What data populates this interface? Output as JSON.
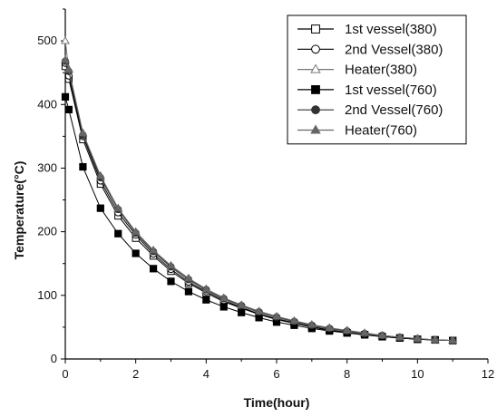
{
  "chart_data": {
    "type": "line",
    "xlabel": "Time(hour)",
    "ylabel": "Temperature(°C)",
    "xlim": [
      0,
      12
    ],
    "ylim": [
      0,
      550
    ],
    "xticks": [
      0,
      2,
      4,
      6,
      8,
      10,
      12
    ],
    "yticks": [
      0,
      100,
      200,
      300,
      400,
      500
    ],
    "grid": false,
    "legend_position": "top-right",
    "x": [
      0,
      0.1,
      0.5,
      1,
      1.5,
      2,
      2.5,
      3,
      3.5,
      4,
      4.5,
      5,
      5.5,
      6,
      6.5,
      7,
      7.5,
      8,
      8.5,
      9,
      9.5,
      10,
      10.5,
      11
    ],
    "series": [
      {
        "name": "1st  vessel(380)",
        "marker": "square-open",
        "color": "#000000",
        "values": [
          460,
          440,
          345,
          275,
          225,
          190,
          162,
          138,
          119,
          104,
          90,
          80,
          70,
          62,
          56,
          50,
          45,
          41,
          38,
          35,
          33,
          31,
          30,
          29
        ]
      },
      {
        "name": "2nd Vessel(380)",
        "marker": "circle-open",
        "color": "#000000",
        "values": [
          465,
          445,
          350,
          280,
          230,
          195,
          165,
          141,
          121,
          106,
          92,
          81,
          71,
          63,
          57,
          51,
          46,
          42,
          39,
          36,
          33,
          31,
          30,
          29
        ]
      },
      {
        "name": "Heater(380)",
        "marker": "triangle-open",
        "color": "#777777",
        "values": [
          500,
          455,
          355,
          285,
          235,
          198,
          168,
          144,
          124,
          108,
          94,
          83,
          73,
          65,
          58,
          52,
          47,
          43,
          39,
          36,
          34,
          32,
          30,
          29
        ]
      },
      {
        "name": "1st vessel(760)",
        "marker": "square-filled",
        "color": "#000000",
        "values": [
          412,
          392,
          302,
          237,
          197,
          166,
          142,
          122,
          106,
          93,
          82,
          73,
          65,
          58,
          53,
          48,
          44,
          41,
          38,
          35,
          33,
          31,
          30,
          29
        ]
      },
      {
        "name": "2nd Vessel(760)",
        "marker": "circle-filled",
        "color": "#333333",
        "values": [
          468,
          452,
          352,
          285,
          235,
          198,
          169,
          145,
          125,
          109,
          95,
          84,
          74,
          66,
          59,
          53,
          48,
          44,
          40,
          37,
          34,
          32,
          30,
          29
        ]
      },
      {
        "name": "Heater(760)",
        "marker": "triangle-filled",
        "color": "#666666",
        "values": [
          470,
          455,
          355,
          288,
          237,
          200,
          171,
          147,
          127,
          110,
          96,
          85,
          75,
          67,
          60,
          54,
          49,
          45,
          41,
          37,
          34,
          32,
          30,
          29
        ]
      }
    ]
  }
}
